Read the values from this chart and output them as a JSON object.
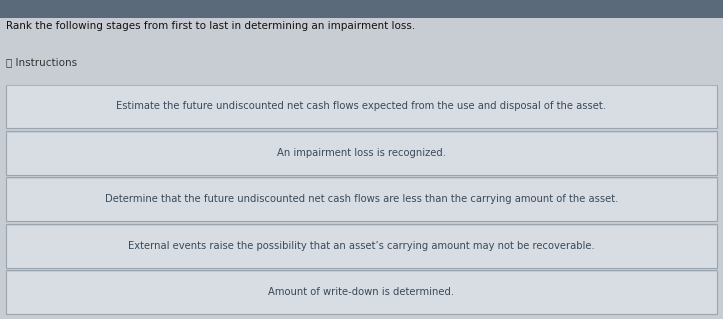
{
  "title": "Rank the following stages from first to last in determining an impairment loss.",
  "instructions_label": "ⓘ Instructions",
  "items": [
    "Estimate the future undiscounted net cash flows expected from the use and disposal of the asset.",
    "An impairment loss is recognized.",
    "Determine that the future undiscounted net cash flows are less than the carrying amount of the asset.",
    "External events raise the possibility that an asset’s carrying amount may not be recoverable.",
    "Amount of write-down is determined."
  ],
  "top_bar_color": "#5a6a7a",
  "page_bg": "#c8cdd4",
  "box_bg": "#d8dde3",
  "box_border_outer": "#9aa5b0",
  "box_border_inner": "#b8c0c8",
  "title_color": "#111111",
  "instructions_color": "#333333",
  "text_color": "#3a4a5a",
  "title_fontsize": 7.5,
  "instructions_fontsize": 7.5,
  "item_fontsize": 7.2,
  "top_bar_height": 0.055
}
